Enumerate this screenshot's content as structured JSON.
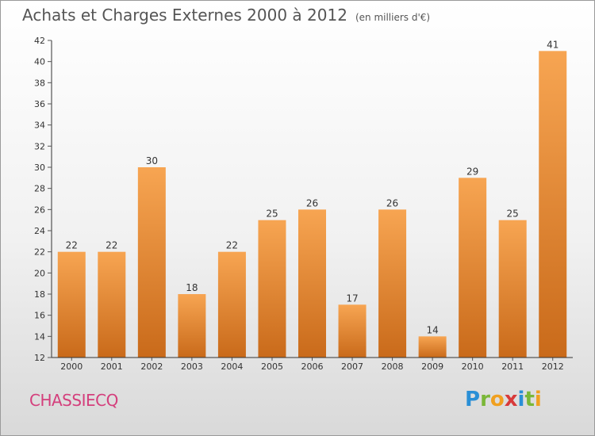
{
  "header": {
    "title": "Achats et Charges Externes 2000 à 2012",
    "subtitle": "(en milliers d'€)"
  },
  "place_name": "CHASSIECQ",
  "logo": {
    "text": "Proxiti",
    "letters": [
      {
        "ch": "P",
        "color": "#2a8fd6"
      },
      {
        "ch": "r",
        "color": "#7ab738"
      },
      {
        "ch": "o",
        "color": "#f0a020"
      },
      {
        "ch": "x",
        "color": "#d83a3a"
      },
      {
        "ch": "i",
        "color": "#2a8fd6"
      },
      {
        "ch": "t",
        "color": "#7ab738"
      },
      {
        "ch": "i",
        "color": "#f0a020"
      }
    ]
  },
  "colors": {
    "bar_light": "#f7a552",
    "bar_dark": "#c96a1a",
    "axis": "#333333",
    "grid_tick": "#555555"
  },
  "chart_data": {
    "type": "bar",
    "categories": [
      "2000",
      "2001",
      "2002",
      "2003",
      "2004",
      "2005",
      "2006",
      "2007",
      "2008",
      "2009",
      "2010",
      "2011",
      "2012"
    ],
    "values": [
      22,
      22,
      30,
      18,
      22,
      25,
      26,
      17,
      26,
      14,
      29,
      25,
      41
    ],
    "ylim": [
      12,
      42
    ],
    "yticks": [
      12,
      14,
      16,
      18,
      20,
      22,
      24,
      26,
      28,
      30,
      32,
      34,
      36,
      38,
      40,
      42
    ],
    "grid": false,
    "data_labels": true
  }
}
